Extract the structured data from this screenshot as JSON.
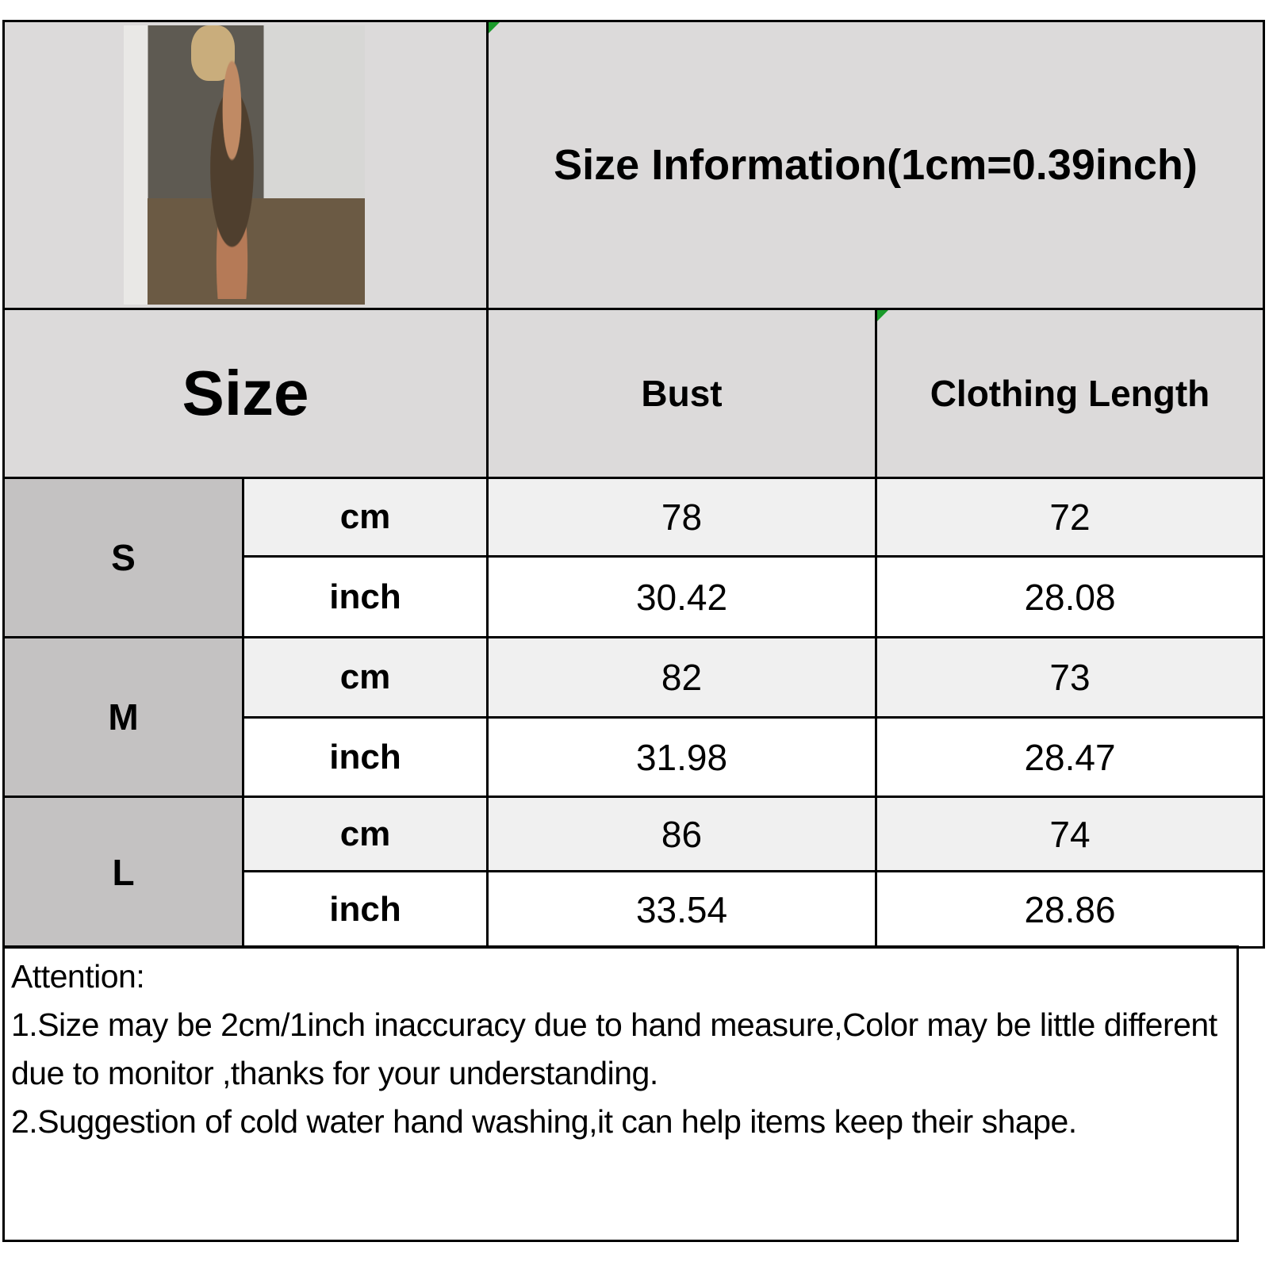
{
  "title": "Size Information(1cm=0.39inch)",
  "headers": {
    "size": "Size",
    "bust": "Bust",
    "length": "Clothing Length"
  },
  "rows": [
    {
      "size": "S",
      "cm": {
        "unit": "cm",
        "bust": "78",
        "length": "72"
      },
      "inch": {
        "unit": "inch",
        "bust": "30.42",
        "length": "28.08"
      }
    },
    {
      "size": "M",
      "cm": {
        "unit": "cm",
        "bust": "82",
        "length": "73"
      },
      "inch": {
        "unit": "inch",
        "bust": "31.98",
        "length": "28.47"
      }
    },
    {
      "size": "L",
      "cm": {
        "unit": "cm",
        "bust": "86",
        "length": "74"
      },
      "inch": {
        "unit": "inch",
        "bust": "33.54",
        "length": "28.86"
      }
    }
  ],
  "notes": {
    "heading": "Attention:",
    "line1": "1.Size may be 2cm/1inch inaccuracy due to hand measure,Color may be little different due to monitor ,thanks for your understanding.",
    "line2": "2.Suggestion of cold water hand washing,it can help items keep their shape."
  },
  "colors": {
    "header_bg": "#dcdada",
    "size_col_bg": "#c4c2c2",
    "cm_row_bg": "#f0f0f0",
    "inch_row_bg": "#ffffff",
    "corner_marker": "#1a9a2a"
  }
}
